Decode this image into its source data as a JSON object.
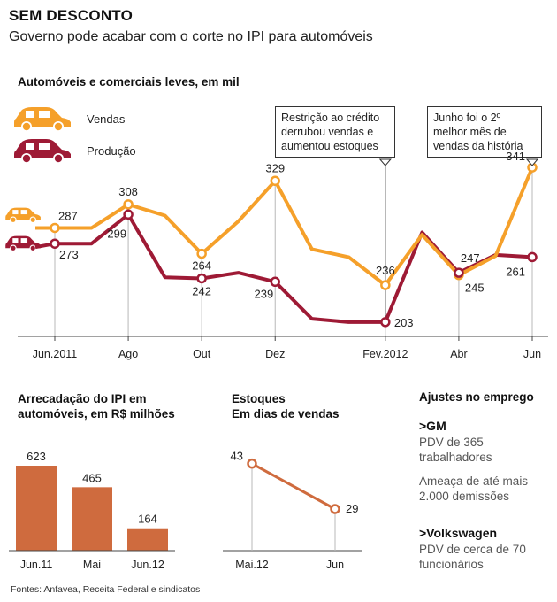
{
  "header": {
    "title": "SEM DESCONTO",
    "subtitle": "Governo pode acabar com o corte no IPI para automóveis"
  },
  "colors": {
    "vendas": "#f5a02a",
    "producao": "#9e1a35",
    "bars": "#cf6b3e",
    "stock": "#cf6b3e",
    "axis": "#444444",
    "guide": "#b8b8b8"
  },
  "chart_data": [
    {
      "type": "line",
      "title": "Automóveis e comerciais leves, em mil",
      "legend": [
        "Vendas",
        "Produção"
      ],
      "x_ticks": [
        "Jun.2011",
        "Ago",
        "Out",
        "Dez",
        "Fev.2012",
        "Abr",
        "Jun"
      ],
      "ylim": [
        180,
        360
      ],
      "series": [
        {
          "name": "Vendas",
          "color": "#f5a02a",
          "values": [
            287,
            287,
            308,
            298,
            264,
            293,
            329,
            268,
            261,
            236,
            281,
            245,
            262,
            341
          ],
          "labels": [
            {
              "i": 0,
              "text": "287"
            },
            {
              "i": 2,
              "text": "308"
            },
            {
              "i": 4,
              "text": "264"
            },
            {
              "i": 6,
              "text": "329"
            },
            {
              "i": 9,
              "text": "236"
            },
            {
              "i": 11,
              "text": "245"
            },
            {
              "i": 13,
              "text": "341"
            }
          ]
        },
        {
          "name": "Produção",
          "color": "#9e1a35",
          "values": [
            273,
            273,
            299,
            243,
            242,
            247,
            239,
            206,
            203,
            203,
            283,
            247,
            263,
            261
          ],
          "labels": [
            {
              "i": 0,
              "text": "273"
            },
            {
              "i": 2,
              "text": "299"
            },
            {
              "i": 4,
              "text": "242"
            },
            {
              "i": 6,
              "text": "239"
            },
            {
              "i": 9,
              "text": "203"
            },
            {
              "i": 11,
              "text": "247"
            },
            {
              "i": 13,
              "text": "261"
            }
          ]
        }
      ],
      "annotations": [
        {
          "text": "Restrição ao crédito derrubou vendas e aumentou estoques",
          "at": "Fev.2012"
        },
        {
          "text": "Junho foi o 2º melhor mês de vendas da história",
          "at": "Jun"
        }
      ]
    },
    {
      "type": "bar",
      "title": "Arrecadação do IPI em automóveis, em R$ milhões",
      "categories": [
        "Jun.11",
        "Mai",
        "Jun.12"
      ],
      "values": [
        623,
        465,
        164
      ],
      "ylim": [
        0,
        623
      ]
    },
    {
      "type": "line",
      "title": "Estoques Em dias de vendas",
      "categories": [
        "Mai.12",
        "Jun"
      ],
      "values": [
        43,
        29
      ],
      "ylim": [
        20,
        50
      ]
    }
  ],
  "main_chart": {
    "title": "Automóveis e comerciais leves, em mil",
    "legend_vendas": "Vendas",
    "legend_producao": "Produção",
    "annotation1_line1": "Restrição ao crédito",
    "annotation1_line2": "derrubou vendas e",
    "annotation1_line3": "aumentou estoques",
    "annotation2_line1": "Junho foi o 2º",
    "annotation2_line2": "melhor mês de",
    "annotation2_line3": "vendas da história"
  },
  "ipi": {
    "title_line1": "Arrecadação do IPI em",
    "title_line2": "automóveis, em R$ milhões"
  },
  "estoques": {
    "title_line1": "Estoques",
    "title_line2": "Em dias de vendas"
  },
  "emprego": {
    "title": "Ajustes no emprego",
    "gm_name": ">GM",
    "gm_line1": "PDV de 365",
    "gm_line2": "trabalhadores",
    "gm_line3": "Ameaça de até mais",
    "gm_line4": "2.000 demissões",
    "vw_name": ">Volkswagen",
    "vw_line1": "PDV de cerca de 70",
    "vw_line2": "funcionários"
  },
  "footer": {
    "source": "Fontes: Anfavea, Receita Federal e sindicatos"
  }
}
